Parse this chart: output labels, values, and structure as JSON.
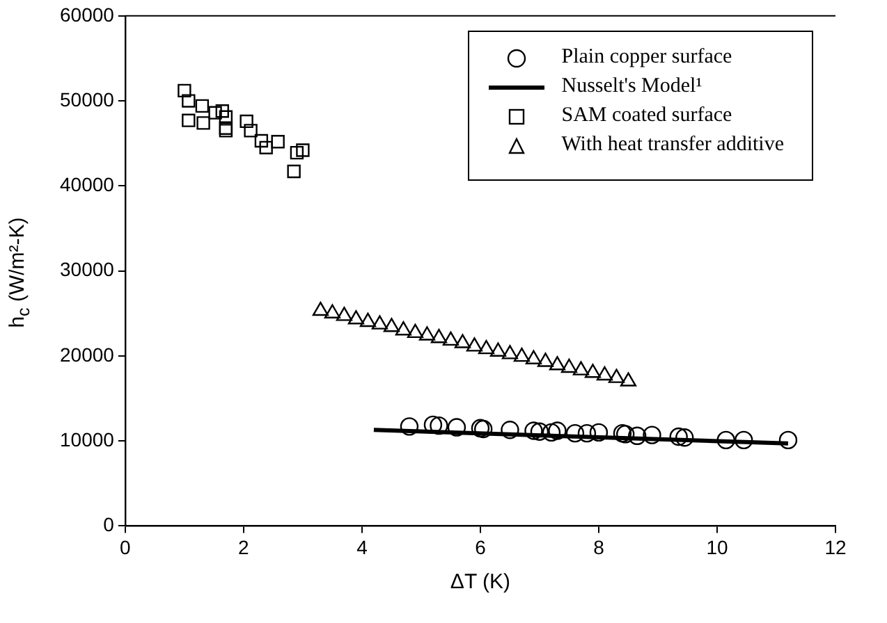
{
  "chart_data": {
    "type": "scatter",
    "xlabel": "ΔT (K)",
    "ylabel": "h$_{c}$ (W/m²-K)",
    "xlim": [
      0,
      12
    ],
    "xticks": [
      0,
      2,
      4,
      6,
      8,
      10,
      12
    ],
    "ylim": [
      0,
      60000
    ],
    "yticks": [
      0,
      10000,
      20000,
      30000,
      40000,
      50000,
      60000
    ],
    "legend": "top right",
    "series": [
      {
        "name": "Plain copper surface",
        "color": "#000000",
        "marker": "circle",
        "x": [
          4.8,
          5.2,
          5.3,
          5.6,
          6.0,
          6.05,
          6.5,
          6.9,
          7.0,
          7.2,
          7.3,
          7.6,
          7.8,
          8.0,
          8.4,
          8.45,
          8.65,
          8.9,
          9.35,
          9.45,
          10.15,
          10.45,
          11.2
        ],
        "values": [
          11700,
          11900,
          11800,
          11600,
          11500,
          11400,
          11300,
          11200,
          11100,
          11000,
          11200,
          10900,
          10900,
          11000,
          10900,
          10800,
          10600,
          10700,
          10500,
          10400,
          10100,
          10100,
          10100
        ]
      },
      {
        "name": "Nusselt's Model¹",
        "type": "line",
        "color": "#000000",
        "marker": "none",
        "x": [
          4.2,
          11.2
        ],
        "values": [
          11300,
          9700
        ]
      },
      {
        "name": "SAM coated surface",
        "color": "#000000",
        "marker": "square",
        "x": [
          1.0,
          1.07,
          1.07,
          1.3,
          1.32,
          1.52,
          1.64,
          1.7,
          1.7,
          1.7,
          2.05,
          2.12,
          2.3,
          2.38,
          2.58,
          2.9,
          3.0,
          2.85
        ],
        "values": [
          51200,
          50000,
          47700,
          49400,
          47400,
          48600,
          48800,
          48100,
          46800,
          46500,
          47600,
          46500,
          45300,
          44500,
          45200,
          43900,
          44200,
          41700
        ]
      },
      {
        "name": "With heat transfer additive",
        "color": "#000000",
        "marker": "triangle",
        "x": [
          3.3,
          3.5,
          3.7,
          3.9,
          4.1,
          4.3,
          4.5,
          4.7,
          4.9,
          5.1,
          5.3,
          5.5,
          5.7,
          5.9,
          6.1,
          6.3,
          6.5,
          6.7,
          6.9,
          7.1,
          7.3,
          7.5,
          7.7,
          7.9,
          8.1,
          8.3,
          8.5
        ],
        "values": [
          25300,
          25000,
          24700,
          24300,
          24000,
          23700,
          23400,
          23000,
          22700,
          22400,
          22100,
          21800,
          21500,
          21100,
          20800,
          20500,
          20200,
          19900,
          19600,
          19300,
          18900,
          18600,
          18300,
          18000,
          17700,
          17400,
          17000
        ]
      }
    ]
  }
}
